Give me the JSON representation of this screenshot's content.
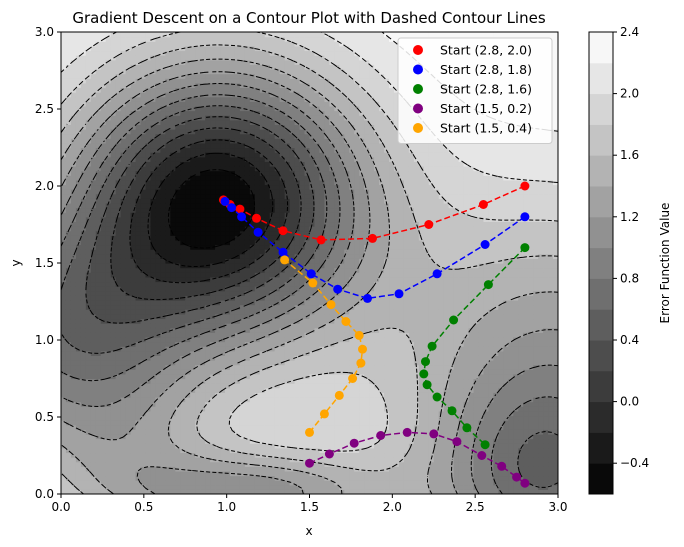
{
  "chart_data": {
    "type": "contour",
    "title": "Gradient Descent on a Contour Plot with Dashed Contour Lines",
    "xlabel": "x",
    "ylabel": "y",
    "xlim": [
      0,
      3
    ],
    "ylim": [
      0,
      3
    ],
    "xticks": [
      "0.0",
      "0.5",
      "1.0",
      "1.5",
      "2.0",
      "2.5",
      "3.0"
    ],
    "yticks": [
      "0.0",
      "0.5",
      "1.0",
      "1.5",
      "2.0",
      "2.5",
      "3.0"
    ],
    "contour_style": "filled grayscale with dashed black contour lines",
    "colorbar": {
      "label": "Error Function Value",
      "range": [
        -0.6,
        2.4
      ],
      "ticks": [
        "−0.4",
        "0.0",
        "0.4",
        "0.8",
        "1.2",
        "1.6",
        "2.0",
        "2.4"
      ],
      "tick_values": [
        -0.4,
        0.0,
        0.4,
        0.8,
        1.2,
        1.6,
        2.0,
        2.4
      ],
      "levels": 15
    },
    "legend_position": "top-right",
    "series": [
      {
        "name": "Start (2.8, 2.0)",
        "color": "#ff0000",
        "x": [
          2.8,
          2.55,
          2.22,
          1.88,
          1.57,
          1.34,
          1.18,
          1.08,
          1.02,
          0.99,
          0.98
        ],
        "y": [
          2.0,
          1.88,
          1.75,
          1.66,
          1.65,
          1.71,
          1.79,
          1.85,
          1.88,
          1.9,
          1.91
        ]
      },
      {
        "name": "Start (2.8, 1.8)",
        "color": "#0000ff",
        "x": [
          2.8,
          2.56,
          2.27,
          2.04,
          1.85,
          1.67,
          1.51,
          1.34,
          1.19,
          1.09,
          1.03,
          0.99
        ],
        "y": [
          1.8,
          1.62,
          1.43,
          1.3,
          1.27,
          1.33,
          1.43,
          1.57,
          1.7,
          1.8,
          1.86,
          1.9
        ]
      },
      {
        "name": "Start (2.8, 1.6)",
        "color": "#008000",
        "x": [
          2.8,
          2.58,
          2.37,
          2.24,
          2.2,
          2.19,
          2.21,
          2.27,
          2.36,
          2.45,
          2.56
        ],
        "y": [
          1.6,
          1.36,
          1.13,
          0.96,
          0.86,
          0.78,
          0.71,
          0.63,
          0.54,
          0.43,
          0.32
        ]
      },
      {
        "name": "Start (1.5, 0.2)",
        "color": "#800080",
        "x": [
          1.5,
          1.62,
          1.77,
          1.93,
          2.09,
          2.25,
          2.39,
          2.54,
          2.66,
          2.75,
          2.8
        ],
        "y": [
          0.2,
          0.26,
          0.33,
          0.38,
          0.4,
          0.39,
          0.34,
          0.25,
          0.18,
          0.11,
          0.07
        ]
      },
      {
        "name": "Start (1.5, 0.4)",
        "color": "#ffa500",
        "x": [
          1.5,
          1.59,
          1.68,
          1.76,
          1.81,
          1.82,
          1.8,
          1.72,
          1.63,
          1.52,
          1.35
        ],
        "y": [
          0.4,
          0.52,
          0.64,
          0.75,
          0.85,
          0.94,
          1.03,
          1.12,
          1.23,
          1.37,
          1.52
        ]
      }
    ]
  }
}
